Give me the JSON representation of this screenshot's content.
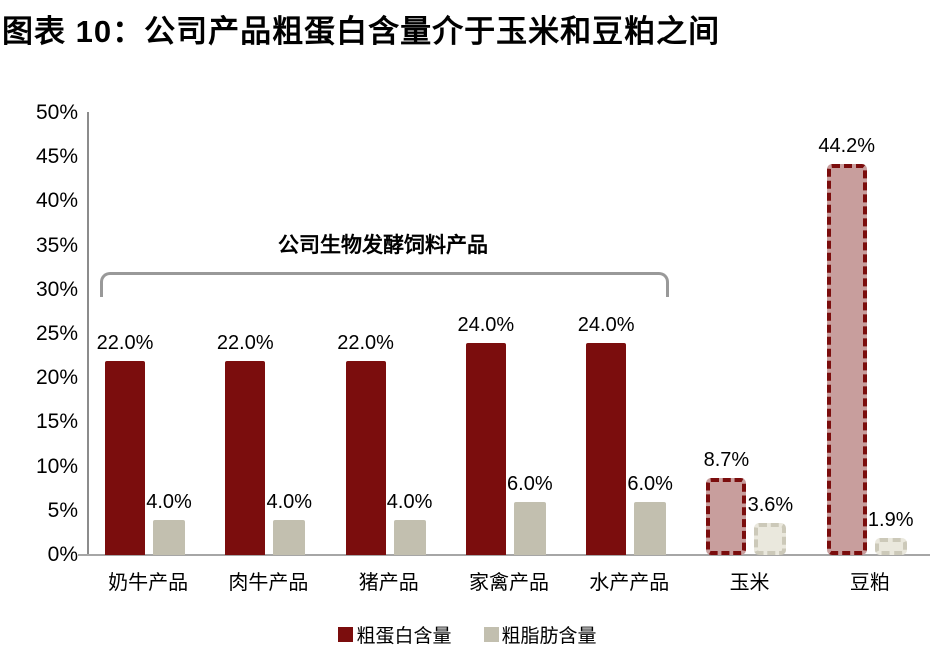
{
  "title": "图表 10：公司产品粗蛋白含量介于玉米和豆粕之间",
  "chart_data": {
    "type": "bar",
    "title": "图表 10：公司产品粗蛋白含量介于玉米和豆粕之间",
    "categories": [
      "奶牛产品",
      "肉牛产品",
      "猪产品",
      "家禽产品",
      "水产产品",
      "玉米",
      "豆粕"
    ],
    "series": [
      {
        "name": "粗蛋白含量",
        "values": [
          22.0,
          22.0,
          22.0,
          24.0,
          24.0,
          8.7,
          44.2
        ],
        "labels": [
          "22.0%",
          "22.0%",
          "22.0%",
          "24.0%",
          "24.0%",
          "8.7%",
          "44.2%"
        ],
        "color": "#7B0D0D",
        "dashed_fill": "#C89E9D",
        "dash_border": "#7B0D0D"
      },
      {
        "name": "粗脂肪含量",
        "values": [
          4.0,
          4.0,
          4.0,
          6.0,
          6.0,
          3.6,
          1.9
        ],
        "labels": [
          "4.0%",
          "4.0%",
          "4.0%",
          "6.0%",
          "6.0%",
          "3.6%",
          "1.9%"
        ],
        "color": "#C2BFAF",
        "dashed_fill": "#EAE8DD",
        "dash_border": "#CCC9B9"
      }
    ],
    "dashed_categories": [
      5,
      6
    ],
    "ylim": [
      0,
      50
    ],
    "ytick_step": 5,
    "ytick_labels": [
      "0%",
      "5%",
      "10%",
      "15%",
      "20%",
      "25%",
      "30%",
      "35%",
      "40%",
      "45%",
      "50%"
    ],
    "annotation": "公司生物发酵饲料产品",
    "annotation_span_categories": [
      0,
      4
    ],
    "legend": [
      "粗蛋白含量",
      "粗脂肪含量"
    ],
    "legend_position": "bottom",
    "grid": false,
    "xlabel": "",
    "ylabel": ""
  }
}
